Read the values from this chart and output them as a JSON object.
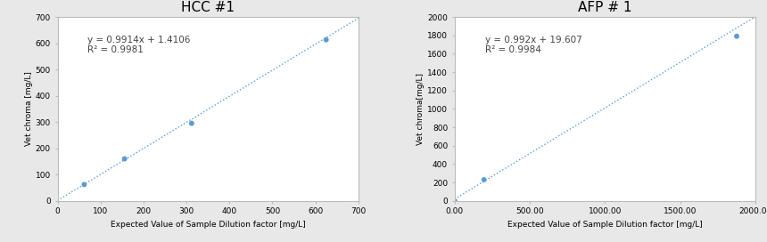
{
  "plot1": {
    "title": "HCC #1",
    "x_data": [
      62,
      156,
      312,
      625
    ],
    "y_data": [
      62,
      160,
      295,
      613
    ],
    "slope": 0.9914,
    "intercept": 1.4106,
    "r2": 0.9981,
    "equation": "y = 0.9914x + 1.4106",
    "r2_label": "R² = 0.9981",
    "xlim": [
      0,
      700
    ],
    "ylim": [
      0,
      700
    ],
    "xticks": [
      0,
      100,
      200,
      300,
      400,
      500,
      600,
      700
    ],
    "yticks": [
      0,
      100,
      200,
      300,
      400,
      500,
      600,
      700
    ],
    "xlabel": "Expected Value of Sample Dilution factor [mg/L]",
    "ylabel": "Vet chroma [mg/L]",
    "dot_color": "#5b9bd5",
    "line_color": "#5b9bd5"
  },
  "plot2": {
    "title": "AFP # 1",
    "x_data": [
      0,
      195,
      1875
    ],
    "y_data": [
      0,
      230,
      1790
    ],
    "slope": 0.992,
    "intercept": 19.607,
    "r2": 0.9984,
    "equation": "y = 0.992x + 19.607",
    "r2_label": "R² = 0.9984",
    "xlim": [
      0,
      2000
    ],
    "ylim": [
      0,
      2000
    ],
    "xticks": [
      0.0,
      500.0,
      1000.0,
      1500.0,
      2000.0
    ],
    "yticks": [
      0,
      200,
      400,
      600,
      800,
      1000,
      1200,
      1400,
      1600,
      1800,
      2000
    ],
    "xlabel": "Expected Value of Sample Dilution factor [mg/L]",
    "ylabel": "Vet chroma[mg/L]",
    "dot_color": "#5b9bd5",
    "line_color": "#5b9bd5"
  },
  "fig_bg": "#e8e8e8",
  "box_bg": "#ffffff",
  "box_edge": "#aaaaaa",
  "title_fontsize": 11,
  "label_fontsize": 6.5,
  "tick_fontsize": 6.5,
  "annot_fontsize": 7.5
}
